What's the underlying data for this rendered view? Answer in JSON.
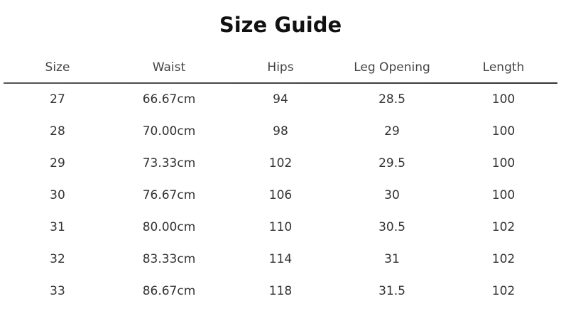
{
  "title": "Size Guide",
  "headers": [
    "Size",
    "Waist",
    "Hips",
    "Leg Opening",
    "Length"
  ],
  "rows": [
    [
      "27",
      "66.67cm",
      "94",
      "28.5",
      "100"
    ],
    [
      "28",
      "70.00cm",
      "98",
      "29",
      "100"
    ],
    [
      "29",
      "73.33cm",
      "102",
      "29.5",
      "100"
    ],
    [
      "30",
      "76.67cm",
      "106",
      "30",
      "100"
    ],
    [
      "31",
      "80.00cm",
      "110",
      "30.5",
      "102"
    ],
    [
      "32",
      "83.33cm",
      "114",
      "31",
      "102"
    ],
    [
      "33",
      "86.67cm",
      "118",
      "31.5",
      "102"
    ]
  ]
}
